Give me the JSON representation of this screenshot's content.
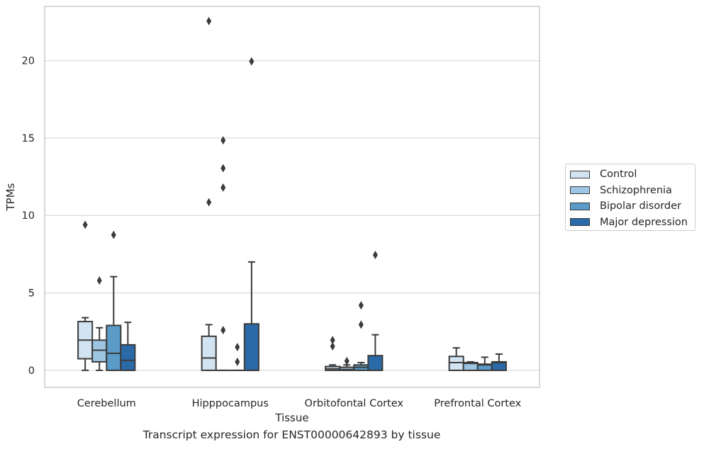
{
  "chart_data": {
    "type": "box",
    "xlabel": "Tissue",
    "ylabel": "TPMs",
    "ylim": [
      -1.1,
      23.5
    ],
    "yticks": [
      0,
      5,
      10,
      15,
      20
    ],
    "grid": "horizontal",
    "legend_position": "right",
    "categories": [
      "Cerebellum",
      "Hipppocampus",
      "Orbitofontal Cortex",
      "Prefrontal Cortex"
    ],
    "series": [
      {
        "name": "Control",
        "color": "#d2e3f2",
        "boxes": [
          {
            "whisker_low": 0.0,
            "q1": 0.75,
            "median": 1.95,
            "q3": 3.15,
            "whisker_high": 3.4,
            "outliers": [
              9.4
            ]
          },
          {
            "whisker_low": 0.0,
            "q1": 0.0,
            "median": 0.8,
            "q3": 2.2,
            "whisker_high": 2.95,
            "outliers": [
              10.85,
              22.55
            ]
          },
          {
            "whisker_low": 0.0,
            "q1": 0.0,
            "median": 0.1,
            "q3": 0.25,
            "whisker_high": 0.35,
            "outliers": [
              1.55,
              1.95
            ]
          },
          {
            "whisker_low": 0.0,
            "q1": 0.0,
            "median": 0.5,
            "q3": 0.9,
            "whisker_high": 1.45,
            "outliers": []
          }
        ]
      },
      {
        "name": "Schizophrenia",
        "color": "#9dc4e0",
        "boxes": [
          {
            "whisker_low": 0.0,
            "q1": 0.55,
            "median": 1.3,
            "q3": 1.95,
            "whisker_high": 2.75,
            "outliers": [
              5.8
            ]
          },
          {
            "whisker_low": 0.0,
            "q1": 0.0,
            "median": 0.0,
            "q3": 0.0,
            "whisker_high": 0.0,
            "outliers": [
              2.6,
              11.8,
              13.05,
              14.85
            ]
          },
          {
            "whisker_low": 0.0,
            "q1": 0.0,
            "median": 0.05,
            "q3": 0.2,
            "whisker_high": 0.35,
            "outliers": [
              0.6
            ]
          },
          {
            "whisker_low": 0.0,
            "q1": 0.0,
            "median": 0.45,
            "q3": 0.5,
            "whisker_high": 0.55,
            "outliers": []
          }
        ]
      },
      {
        "name": "Bipolar disorder",
        "color": "#5a9bc8",
        "boxes": [
          {
            "whisker_low": 0.0,
            "q1": 0.0,
            "median": 1.1,
            "q3": 2.9,
            "whisker_high": 6.05,
            "outliers": [
              8.75
            ]
          },
          {
            "whisker_low": 0.0,
            "q1": 0.0,
            "median": 0.0,
            "q3": 0.0,
            "whisker_high": 0.0,
            "outliers": [
              0.55,
              1.5
            ]
          },
          {
            "whisker_low": 0.0,
            "q1": 0.0,
            "median": 0.2,
            "q3": 0.35,
            "whisker_high": 0.5,
            "outliers": [
              2.95,
              4.2
            ]
          },
          {
            "whisker_low": 0.0,
            "q1": 0.0,
            "median": 0.35,
            "q3": 0.4,
            "whisker_high": 0.85,
            "outliers": []
          }
        ]
      },
      {
        "name": "Major depression",
        "color": "#2b6aa8",
        "boxes": [
          {
            "whisker_low": 0.0,
            "q1": 0.0,
            "median": 0.65,
            "q3": 1.65,
            "whisker_high": 3.1,
            "outliers": []
          },
          {
            "whisker_low": 0.0,
            "q1": 0.0,
            "median": 0.0,
            "q3": 3.0,
            "whisker_high": 7.0,
            "outliers": [
              19.95
            ]
          },
          {
            "whisker_low": 0.0,
            "q1": 0.0,
            "median": 0.0,
            "q3": 0.95,
            "whisker_high": 2.3,
            "outliers": [
              7.45
            ]
          },
          {
            "whisker_low": 0.0,
            "q1": 0.0,
            "median": 0.5,
            "q3": 0.55,
            "whisker_high": 1.05,
            "outliers": []
          }
        ]
      }
    ],
    "caption": "Transcript expression for ENST00000642893 by tissue"
  }
}
